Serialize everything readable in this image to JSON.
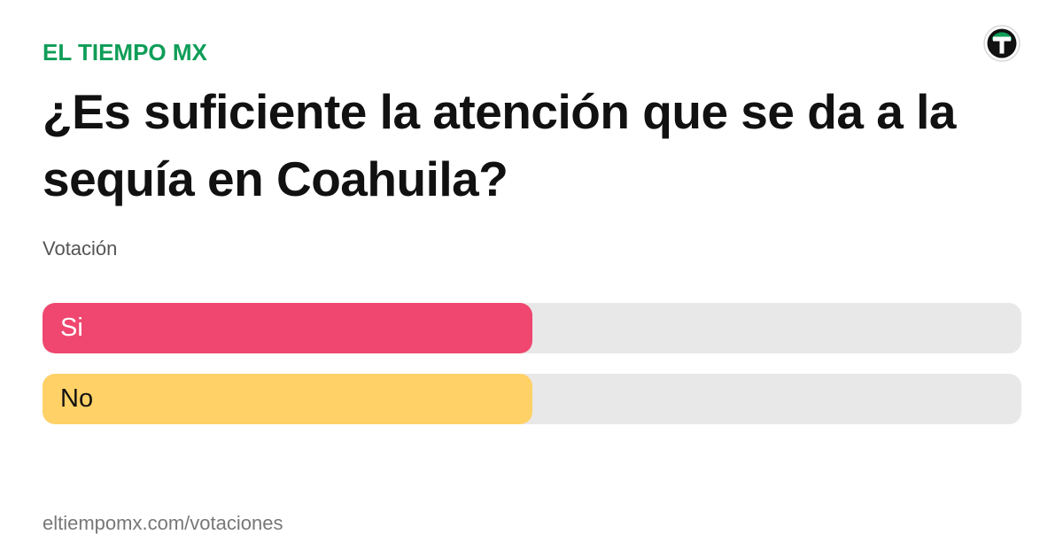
{
  "header": {
    "brand": "EL TIEMPO MX",
    "logo_icon": "el-tiempo-logo-icon"
  },
  "poll": {
    "question": "¿Es suficiente la atención que se da a la sequía en Coahuila?",
    "subtitle": "Votación",
    "options": [
      {
        "label": "Si",
        "fraction": 0.5,
        "color": "#ef476f",
        "text_color": "#ffffff"
      },
      {
        "label": "No",
        "fraction": 0.5,
        "color": "#ffd166",
        "text_color": "#111111"
      }
    ]
  },
  "footer": {
    "url": "eltiempomx.com/votaciones"
  },
  "colors": {
    "brand": "#0f9d58",
    "track": "#e8e8e8"
  }
}
